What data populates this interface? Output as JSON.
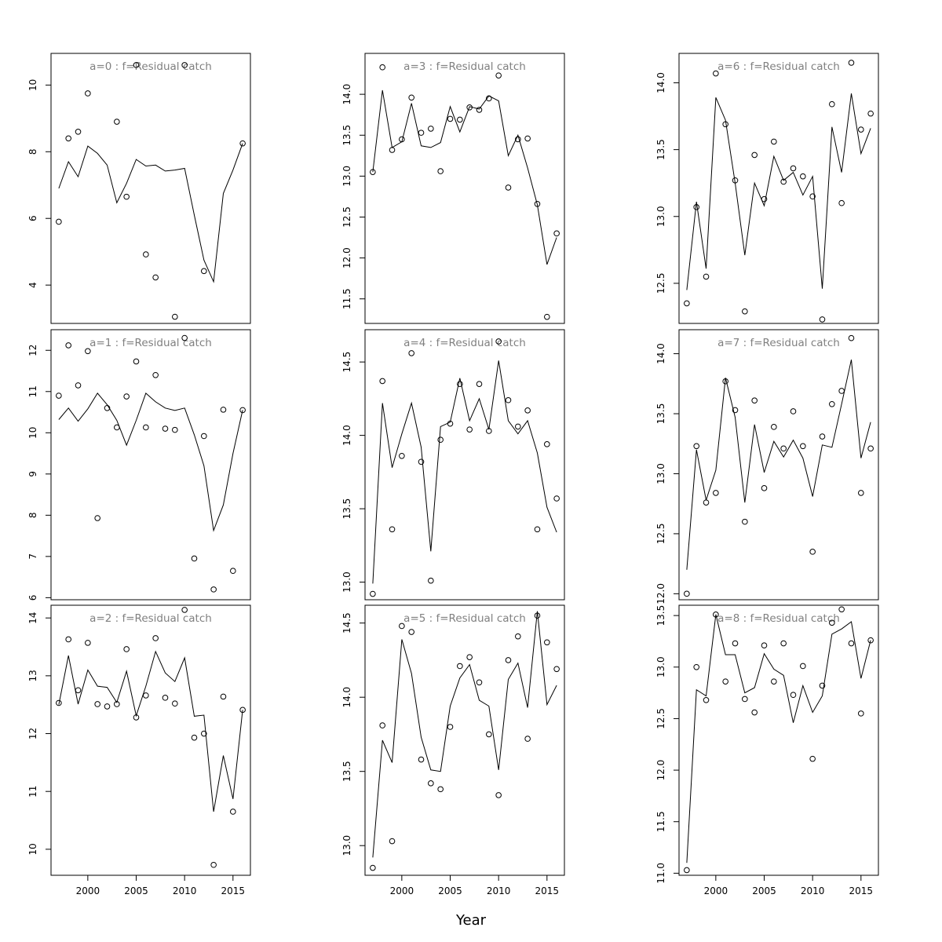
{
  "figure": {
    "xlabel": "Year"
  },
  "chart_data": [
    {
      "type": "scatter",
      "title": "a=0  :  f=Residual catch",
      "x": [
        1997,
        1998,
        1999,
        2000,
        2001,
        2002,
        2003,
        2004,
        2005,
        2006,
        2007,
        2008,
        2009,
        2010,
        2011,
        2012,
        2013,
        2014,
        2015,
        2016
      ],
      "observed": [
        5.9,
        8.4,
        8.6,
        9.75,
        null,
        null,
        8.9,
        6.65,
        10.6,
        4.92,
        4.23,
        null,
        3.05,
        10.6,
        null,
        4.42,
        null,
        null,
        null,
        8.25
      ],
      "fitted": [
        6.9,
        7.7,
        7.25,
        8.17,
        7.95,
        7.6,
        6.47,
        7.05,
        7.77,
        7.57,
        7.6,
        7.42,
        7.45,
        7.5,
        6.1,
        4.75,
        4.1,
        6.75,
        7.45,
        8.25
      ],
      "xticks": [
        2000,
        2005,
        2010,
        2015
      ],
      "yticks": [
        4,
        6,
        8,
        10
      ],
      "ylim": [
        2.85,
        10.95
      ],
      "xlim": [
        1996.2,
        2016.8
      ]
    },
    {
      "type": "scatter",
      "title": "a=1  :  f=Residual catch",
      "x": [
        1997,
        1998,
        1999,
        2000,
        2001,
        2002,
        2003,
        2004,
        2005,
        2006,
        2007,
        2008,
        2009,
        2010,
        2011,
        2012,
        2013,
        2014,
        2015,
        2016
      ],
      "observed": [
        10.9,
        12.12,
        11.15,
        11.98,
        7.93,
        10.6,
        10.13,
        10.88,
        11.73,
        10.13,
        11.4,
        10.1,
        10.07,
        12.3,
        6.95,
        9.92,
        6.2,
        10.56,
        6.65,
        10.55
      ],
      "fitted": [
        10.32,
        10.6,
        10.28,
        10.58,
        10.96,
        10.68,
        10.3,
        9.7,
        10.3,
        10.96,
        10.75,
        10.6,
        10.54,
        10.6,
        9.95,
        9.2,
        7.63,
        8.25,
        9.5,
        10.55
      ],
      "xticks": [
        2000,
        2005,
        2010,
        2015
      ],
      "yticks": [
        6,
        7,
        8,
        9,
        10,
        11,
        12
      ],
      "ylim": [
        5.95,
        12.5
      ],
      "xlim": [
        1996.2,
        2016.8
      ]
    },
    {
      "type": "scatter",
      "title": "a=2  :  f=Residual catch",
      "x": [
        1997,
        1998,
        1999,
        2000,
        2001,
        2002,
        2003,
        2004,
        2005,
        2006,
        2007,
        2008,
        2009,
        2010,
        2011,
        2012,
        2013,
        2014,
        2015,
        2016
      ],
      "observed": [
        12.53,
        13.63,
        12.75,
        13.57,
        12.51,
        12.47,
        12.51,
        13.46,
        12.28,
        12.66,
        13.65,
        12.62,
        12.52,
        14.14,
        11.93,
        12.0,
        9.73,
        12.64,
        10.65,
        12.41
      ],
      "fitted": [
        12.5,
        13.35,
        12.51,
        13.1,
        12.82,
        12.8,
        12.54,
        13.08,
        12.31,
        12.82,
        13.42,
        13.05,
        12.9,
        13.31,
        12.3,
        12.32,
        10.65,
        11.62,
        10.87,
        12.41
      ],
      "xticks": [
        2000,
        2005,
        2010,
        2015
      ],
      "yticks": [
        10,
        11,
        12,
        13,
        14
      ],
      "ylim": [
        9.55,
        14.22
      ],
      "xlim": [
        1996.2,
        2016.8
      ]
    },
    {
      "type": "scatter",
      "title": "a=3  :  f=Residual catch",
      "x": [
        1997,
        1998,
        1999,
        2000,
        2001,
        2002,
        2003,
        2004,
        2005,
        2006,
        2007,
        2008,
        2009,
        2010,
        2011,
        2012,
        2013,
        2014,
        2015,
        2016
      ],
      "observed": [
        13.05,
        14.33,
        13.32,
        13.45,
        13.96,
        13.53,
        13.58,
        13.06,
        13.7,
        13.69,
        13.84,
        13.81,
        13.95,
        14.23,
        12.86,
        13.45,
        13.46,
        12.66,
        11.28,
        12.3
      ],
      "fitted": [
        13.05,
        14.05,
        13.35,
        13.42,
        13.89,
        13.37,
        13.35,
        13.41,
        13.85,
        13.54,
        13.85,
        13.82,
        13.98,
        13.92,
        13.25,
        13.5,
        13.1,
        12.65,
        11.92,
        12.25
      ],
      "xticks": [
        2000,
        2005,
        2010,
        2015
      ],
      "yticks": [
        11.5,
        12.0,
        12.5,
        13.0,
        13.5,
        14.0
      ],
      "ylim": [
        11.2,
        14.5
      ],
      "xlim": [
        1996.2,
        2016.8
      ]
    },
    {
      "type": "scatter",
      "title": "a=4  :  f=Residual catch",
      "x": [
        1997,
        1998,
        1999,
        2000,
        2001,
        2002,
        2003,
        2004,
        2005,
        2006,
        2007,
        2008,
        2009,
        2010,
        2011,
        2012,
        2013,
        2014,
        2015,
        2016
      ],
      "observed": [
        12.92,
        14.37,
        13.36,
        13.86,
        14.56,
        13.82,
        13.01,
        13.97,
        14.08,
        14.35,
        14.04,
        14.35,
        14.03,
        14.64,
        14.24,
        14.06,
        14.17,
        13.36,
        13.94,
        13.57
      ],
      "fitted": [
        12.99,
        14.22,
        13.78,
        14.01,
        14.22,
        13.92,
        13.21,
        14.06,
        14.09,
        14.39,
        14.1,
        14.25,
        14.04,
        14.51,
        14.1,
        14.01,
        14.1,
        13.88,
        13.51,
        13.34
      ],
      "xticks": [
        2000,
        2005,
        2010,
        2015
      ],
      "yticks": [
        13.0,
        13.5,
        14.0,
        14.5
      ],
      "ylim": [
        12.88,
        14.72
      ],
      "xlim": [
        1996.2,
        2016.8
      ]
    },
    {
      "type": "scatter",
      "title": "a=5  :  f=Residual catch",
      "x": [
        1997,
        1998,
        1999,
        2000,
        2001,
        2002,
        2003,
        2004,
        2005,
        2006,
        2007,
        2008,
        2009,
        2010,
        2011,
        2012,
        2013,
        2014,
        2015,
        2016
      ],
      "observed": [
        12.85,
        13.81,
        13.03,
        14.48,
        14.44,
        13.58,
        13.42,
        13.38,
        13.8,
        14.21,
        14.27,
        14.1,
        13.75,
        13.34,
        14.25,
        14.41,
        13.72,
        14.55,
        14.37,
        14.19
      ],
      "fitted": [
        12.92,
        13.71,
        13.56,
        14.39,
        14.16,
        13.73,
        13.51,
        13.5,
        13.94,
        14.13,
        14.22,
        13.98,
        13.94,
        13.51,
        14.12,
        14.23,
        13.93,
        14.58,
        13.95,
        14.08
      ],
      "xticks": [
        2000,
        2005,
        2010,
        2015
      ],
      "yticks": [
        13.0,
        13.5,
        14.0,
        14.5
      ],
      "ylim": [
        12.8,
        14.62
      ],
      "xlim": [
        1996.2,
        2016.8
      ]
    },
    {
      "type": "scatter",
      "title": "a=6  :  f=Residual catch",
      "x": [
        1997,
        1998,
        1999,
        2000,
        2001,
        2002,
        2003,
        2004,
        2005,
        2006,
        2007,
        2008,
        2009,
        2010,
        2011,
        2012,
        2013,
        2014,
        2015,
        2016
      ],
      "observed": [
        12.35,
        13.07,
        12.55,
        14.07,
        13.69,
        13.27,
        12.29,
        13.46,
        13.13,
        13.56,
        13.26,
        13.36,
        13.3,
        13.15,
        12.23,
        13.84,
        13.1,
        14.15,
        13.65,
        13.77
      ],
      "fitted": [
        12.45,
        13.11,
        12.61,
        13.89,
        13.72,
        13.25,
        12.71,
        13.25,
        13.08,
        13.45,
        13.27,
        13.33,
        13.16,
        13.3,
        12.46,
        13.67,
        13.33,
        13.92,
        13.47,
        13.66
      ],
      "xticks": [
        2000,
        2005,
        2010,
        2015
      ],
      "yticks": [
        12.5,
        13.0,
        13.5,
        14.0
      ],
      "ylim": [
        12.2,
        14.22
      ],
      "xlim": [
        1996.2,
        2016.8
      ]
    },
    {
      "type": "scatter",
      "title": "a=7  :  f=Residual catch",
      "x": [
        1997,
        1998,
        1999,
        2000,
        2001,
        2002,
        2003,
        2004,
        2005,
        2006,
        2007,
        2008,
        2009,
        2010,
        2011,
        2012,
        2013,
        2014,
        2015,
        2016
      ],
      "observed": [
        12.0,
        13.23,
        12.76,
        12.84,
        13.77,
        13.53,
        12.6,
        13.61,
        12.88,
        13.39,
        13.21,
        13.52,
        13.23,
        12.35,
        13.31,
        13.58,
        13.69,
        14.13,
        12.84,
        13.21
      ],
      "fitted": [
        12.2,
        13.2,
        12.78,
        13.03,
        13.8,
        13.47,
        12.76,
        13.41,
        13.01,
        13.27,
        13.14,
        13.28,
        13.13,
        12.81,
        13.24,
        13.22,
        13.58,
        13.95,
        13.13,
        13.43
      ],
      "xticks": [
        2000,
        2005,
        2010,
        2015
      ],
      "yticks": [
        12.0,
        12.5,
        13.0,
        13.5,
        14.0
      ],
      "ylim": [
        11.95,
        14.2
      ],
      "xlim": [
        1996.2,
        2016.8
      ]
    },
    {
      "type": "scatter",
      "title": "a=8  :  f=Residual catch",
      "x": [
        1997,
        1998,
        1999,
        2000,
        2001,
        2002,
        2003,
        2004,
        2005,
        2006,
        2007,
        2008,
        2009,
        2010,
        2011,
        2012,
        2013,
        2014,
        2015,
        2016
      ],
      "observed": [
        11.03,
        13.0,
        12.68,
        13.51,
        12.86,
        13.23,
        12.69,
        12.56,
        13.21,
        12.86,
        13.23,
        12.73,
        13.01,
        12.11,
        12.82,
        13.43,
        13.56,
        13.23,
        12.55,
        13.26
      ],
      "fitted": [
        11.1,
        12.78,
        12.72,
        13.51,
        13.12,
        13.12,
        12.75,
        12.8,
        13.13,
        12.98,
        12.92,
        12.46,
        12.82,
        12.56,
        12.72,
        13.32,
        13.37,
        13.44,
        12.89,
        13.26
      ],
      "xticks": [
        2000,
        2005,
        2010,
        2015
      ],
      "yticks": [
        11.0,
        11.5,
        12.0,
        12.5,
        13.0,
        13.5
      ],
      "ylim": [
        10.98,
        13.6
      ],
      "xlim": [
        1996.2,
        2016.8
      ]
    }
  ]
}
